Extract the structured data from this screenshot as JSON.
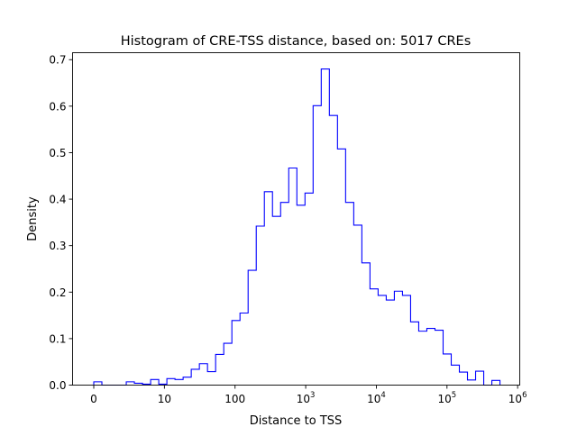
{
  "chart_data": {
    "type": "histogram",
    "title": "Histogram of CRE-TSS distance, based on: 5017 CREs",
    "xlabel": "Distance to TSS",
    "ylabel": "Density",
    "x_scale": "symlog",
    "x_range_decades": [
      -0.3,
      6.03
    ],
    "ylim": [
      0,
      0.715
    ],
    "grid": false,
    "histtype": "step",
    "color": "#0000ff",
    "bin_start_decade": 0,
    "bin_width_decade": 0.115,
    "values": [
      0.007,
      0,
      0,
      0,
      0.007,
      0.004,
      0.002,
      0.012,
      0.002,
      0.014,
      0.012,
      0.017,
      0.034,
      0.046,
      0.029,
      0.066,
      0.09,
      0.139,
      0.155,
      0.247,
      0.342,
      0.416,
      0.363,
      0.393,
      0.467,
      0.387,
      0.413,
      0.601,
      0.68,
      0.58,
      0.508,
      0.393,
      0.344,
      0.263,
      0.207,
      0.193,
      0.183,
      0.202,
      0.193,
      0.136,
      0.116,
      0.122,
      0.118,
      0.067,
      0.043,
      0.028,
      0.011,
      0.03,
      0,
      0.01
    ],
    "x_ticks": [
      {
        "decade": 0,
        "base": "0",
        "exp": ""
      },
      {
        "decade": 1,
        "base": "10",
        "exp": ""
      },
      {
        "decade": 2,
        "base": "100",
        "exp": ""
      },
      {
        "decade": 3,
        "base": "10",
        "exp": "3"
      },
      {
        "decade": 4,
        "base": "10",
        "exp": "4"
      },
      {
        "decade": 5,
        "base": "10",
        "exp": "5"
      },
      {
        "decade": 6,
        "base": "10",
        "exp": "6"
      }
    ],
    "y_ticks": [
      {
        "value": 0,
        "label": "0.0"
      },
      {
        "value": 0.1,
        "label": "0.1"
      },
      {
        "value": 0.2,
        "label": "0.2"
      },
      {
        "value": 0.3,
        "label": "0.3"
      },
      {
        "value": 0.4,
        "label": "0.4"
      },
      {
        "value": 0.5,
        "label": "0.5"
      },
      {
        "value": 0.6,
        "label": "0.6"
      },
      {
        "value": 0.7,
        "label": "0.7"
      }
    ]
  }
}
